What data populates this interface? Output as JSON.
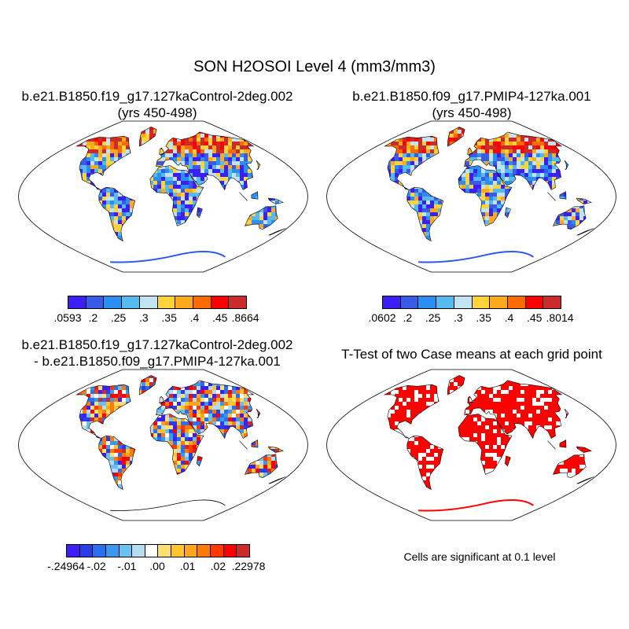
{
  "title": "SON H2OSOI Level 4 (mm3/mm3)",
  "panels": {
    "top_left": {
      "title_line1": "b.e21.B1850.f19_g17.127kaControl-2deg.002",
      "title_line2": "(yrs 450-498)",
      "colorbar": {
        "colors": [
          "#3b1ff5",
          "#3a5ae8",
          "#2a8ff0",
          "#55bbee",
          "#c3e3f0",
          "#ffd43a",
          "#ffa91c",
          "#ff6a00",
          "#ff0000",
          "#cc2b2b"
        ],
        "labels": [
          ".0593",
          ".2",
          ".25",
          ".3",
          ".35",
          ".4",
          ".45",
          ".8664"
        ]
      }
    },
    "top_right": {
      "title_line1": "b.e21.B1850.f09_g17.PMIP4-127ka.001",
      "title_line2": "(yrs 450-498)",
      "colorbar": {
        "colors": [
          "#3b1ff5",
          "#3a5ae8",
          "#2a8ff0",
          "#55bbee",
          "#c3e3f0",
          "#ffd43a",
          "#ffa91c",
          "#ff6a00",
          "#ff0000",
          "#cc2b2b"
        ],
        "labels": [
          ".0602",
          ".2",
          ".25",
          ".3",
          ".35",
          ".4",
          ".45",
          ".8014"
        ]
      }
    },
    "bottom_left": {
      "title_line1": "b.e21.B1850.f19_g17.127kaControl-2deg.002",
      "title_line2": "- b.e21.B1850.f09_g17.PMIP4-127ka.001",
      "colorbar": {
        "colors": [
          "#3b1ff5",
          "#2a3de8",
          "#2a6ff0",
          "#3a98ee",
          "#6cc0f0",
          "#b5dcef",
          "#ffffff",
          "#ffe070",
          "#ffc430",
          "#ffa51c",
          "#ff7a00",
          "#ff3a00",
          "#ff0000",
          "#cc2b2b"
        ],
        "labels": [
          "-.24964",
          "-.02",
          "-.01",
          ".00",
          ".01",
          ".02",
          ".22978"
        ]
      }
    },
    "bottom_right": {
      "title": "T-Test of two Case means at each grid point",
      "note": "Cells are significant at 0.1 level",
      "fill_color": "#ff0000"
    }
  }
}
